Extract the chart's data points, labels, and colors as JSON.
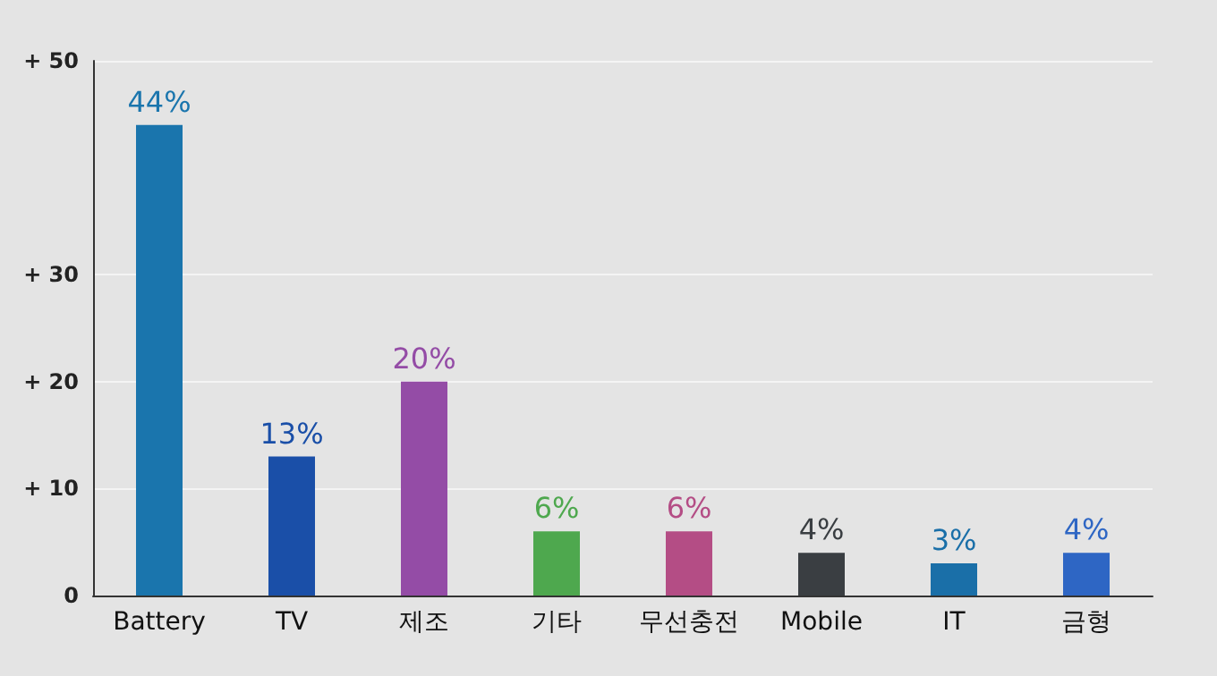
{
  "chart_data": {
    "type": "bar",
    "categories": [
      "Battery",
      "TV",
      "제조",
      "기타",
      "무선충전",
      "Mobile",
      "IT",
      "금형"
    ],
    "values": [
      44,
      13,
      20,
      6,
      6,
      4,
      3,
      4
    ],
    "colors": [
      "#1a75ad",
      "#1a4fa8",
      "#944ca6",
      "#4ea84e",
      "#b44d85",
      "#3a3e42",
      "#1a6fa8",
      "#2e66c4"
    ],
    "value_labels": [
      "44%",
      "13%",
      "20%",
      "6%",
      "6%",
      "4%",
      "3%",
      "4%"
    ],
    "ylim": [
      0,
      50
    ],
    "yticks": [
      0,
      {
        "value": 10,
        "label": "+ 10"
      },
      {
        "value": 20,
        "label": "+ 20"
      },
      {
        "value": 30,
        "label": "+ 30"
      },
      {
        "value": 50,
        "label": "+ 50"
      }
    ],
    "grid": "y"
  }
}
